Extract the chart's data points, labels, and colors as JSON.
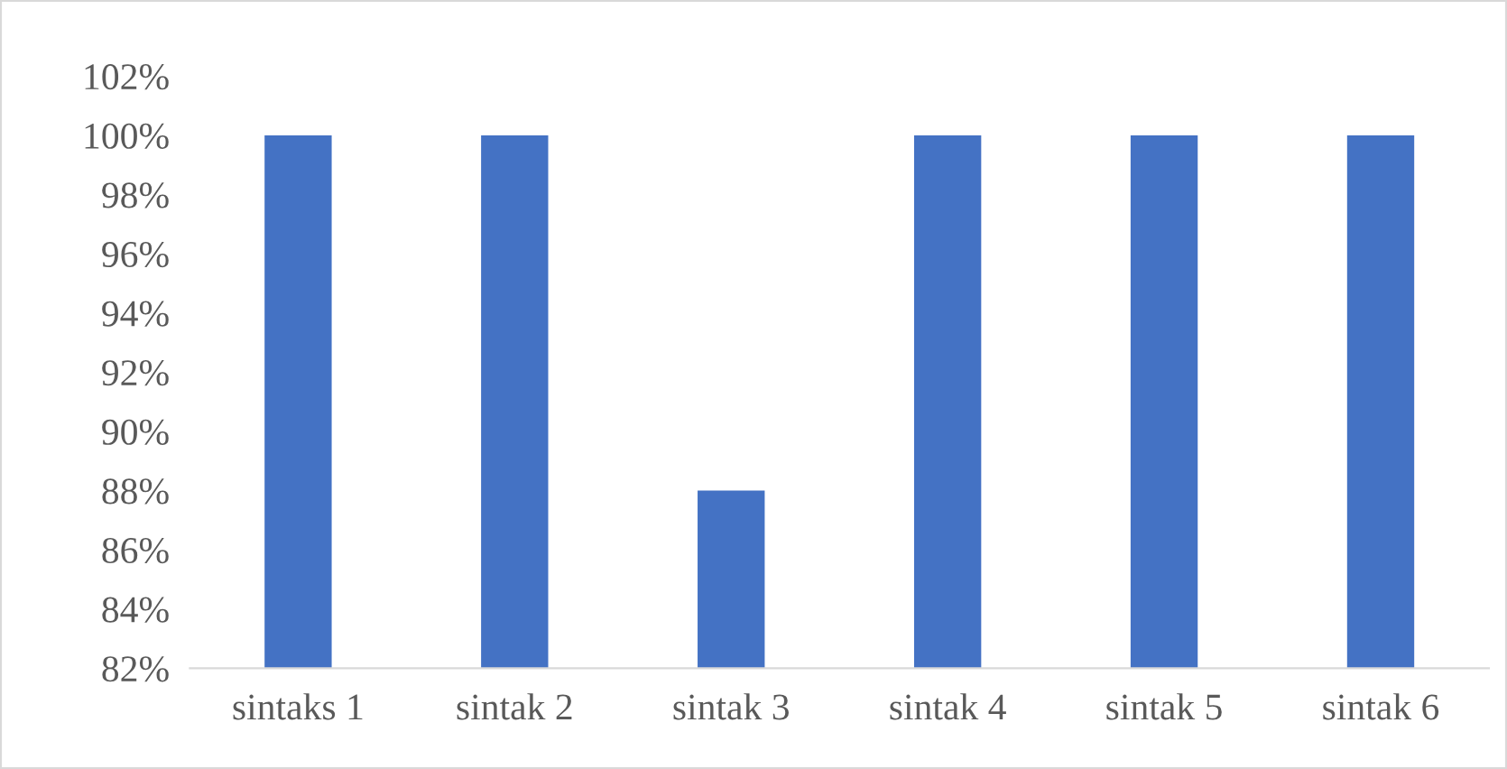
{
  "chart_data": {
    "type": "bar",
    "categories": [
      "sintaks 1",
      "sintak 2",
      "sintak 3",
      "sintak 4",
      "sintak 5",
      "sintak 6"
    ],
    "values": [
      100,
      100,
      88,
      100,
      100,
      100
    ],
    "color": "#4472c4",
    "ylim": [
      82,
      102
    ],
    "yticks": [
      {
        "value": 82,
        "label": "82%"
      },
      {
        "value": 84,
        "label": "84%"
      },
      {
        "value": 86,
        "label": "86%"
      },
      {
        "value": 88,
        "label": "88%"
      },
      {
        "value": 90,
        "label": "90%"
      },
      {
        "value": 92,
        "label": "92%"
      },
      {
        "value": 94,
        "label": "94%"
      },
      {
        "value": 96,
        "label": "96%"
      },
      {
        "value": 98,
        "label": "98%"
      },
      {
        "value": 100,
        "label": "100%"
      },
      {
        "value": 102,
        "label": "102%"
      }
    ]
  }
}
